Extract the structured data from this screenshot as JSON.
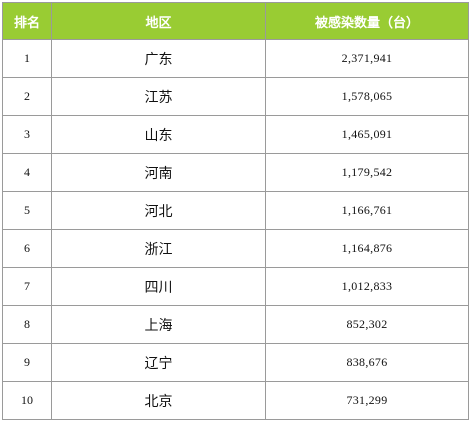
{
  "table": {
    "headers": {
      "rank": "排名",
      "region": "地区",
      "count": "被感染数量（台）"
    },
    "rows": [
      {
        "rank": "1",
        "region": "广东",
        "count": "2,371,941"
      },
      {
        "rank": "2",
        "region": "江苏",
        "count": "1,578,065"
      },
      {
        "rank": "3",
        "region": "山东",
        "count": "1,465,091"
      },
      {
        "rank": "4",
        "region": "河南",
        "count": "1,179,542"
      },
      {
        "rank": "5",
        "region": "河北",
        "count": "1,166,761"
      },
      {
        "rank": "6",
        "region": "浙江",
        "count": "1,164,876"
      },
      {
        "rank": "7",
        "region": "四川",
        "count": "1,012,833"
      },
      {
        "rank": "8",
        "region": "上海",
        "count": "852,302"
      },
      {
        "rank": "9",
        "region": "辽宁",
        "count": "838,676"
      },
      {
        "rank": "10",
        "region": "北京",
        "count": "731,299"
      }
    ]
  },
  "colors": {
    "header_bg": "#99cc33",
    "header_text": "#ffffff",
    "border": "#9a9a9a"
  }
}
